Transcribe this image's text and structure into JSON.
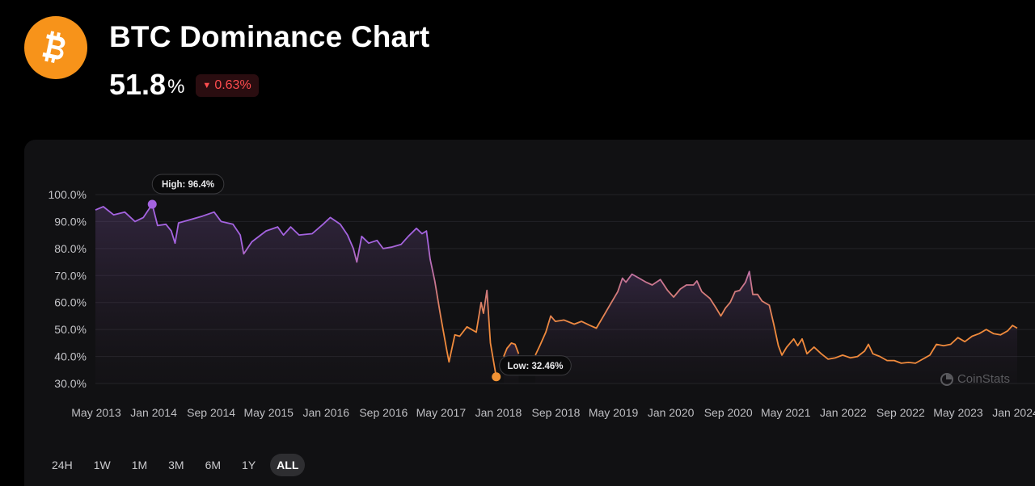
{
  "header": {
    "title": "BTC Dominance Chart",
    "dominance_value": "51.8",
    "dominance_unit": "%",
    "change": "0.63%",
    "change_direction": "down",
    "logo_icon": "bitcoin-icon",
    "brand_color": "#f7931a",
    "negative_color": "#ff4d4f"
  },
  "range_tabs": [
    {
      "label": "24H",
      "active": false
    },
    {
      "label": "1W",
      "active": false
    },
    {
      "label": "1M",
      "active": false
    },
    {
      "label": "3M",
      "active": false
    },
    {
      "label": "6M",
      "active": false
    },
    {
      "label": "1Y",
      "active": false
    },
    {
      "label": "ALL",
      "active": true
    }
  ],
  "watermark": "CoinStats",
  "chart_data": {
    "type": "line",
    "title": "",
    "xlabel": "",
    "ylabel": "",
    "ylim": [
      30,
      100
    ],
    "yticks": [
      "30.0%",
      "40.0%",
      "50.0%",
      "60.0%",
      "70.0%",
      "80.0%",
      "90.0%",
      "100.0%"
    ],
    "xticks": [
      "May 2013",
      "Jan 2014",
      "Sep 2014",
      "May 2015",
      "Jan 2016",
      "Sep 2016",
      "May 2017",
      "Jan 2018",
      "Sep 2018",
      "May 2019",
      "Jan 2020",
      "Sep 2020",
      "May 2021",
      "Jan 2022",
      "Sep 2022",
      "May 2023",
      "Jan 2024"
    ],
    "grid": true,
    "gradient_colors": [
      "#a463e0",
      "#f08a3c"
    ],
    "annotations": {
      "high": {
        "label": "High: 96.4%",
        "date": "2013-12-28",
        "value": 96.4,
        "color": "#a463e0"
      },
      "low": {
        "label": "Low: 32.46%",
        "date": "2018-01-14",
        "value": 32.46,
        "color": "#f09234"
      }
    },
    "series": [
      {
        "points": [
          [
            "2013-04-28",
            94.3
          ],
          [
            "2013-06-01",
            95.5
          ],
          [
            "2013-07-15",
            92.5
          ],
          [
            "2013-09-01",
            93.5
          ],
          [
            "2013-10-15",
            90.0
          ],
          [
            "2013-11-20",
            91.5
          ],
          [
            "2013-12-28",
            96.4
          ],
          [
            "2014-01-20",
            88.5
          ],
          [
            "2014-02-25",
            89.0
          ],
          [
            "2014-03-20",
            86.5
          ],
          [
            "2014-04-05",
            82.0
          ],
          [
            "2014-04-20",
            89.5
          ],
          [
            "2014-06-01",
            90.5
          ],
          [
            "2014-08-01",
            92.0
          ],
          [
            "2014-09-20",
            93.5
          ],
          [
            "2014-10-20",
            90.0
          ],
          [
            "2014-12-10",
            89.0
          ],
          [
            "2015-01-10",
            85.0
          ],
          [
            "2015-01-25",
            78.0
          ],
          [
            "2015-03-01",
            82.5
          ],
          [
            "2015-05-01",
            86.5
          ],
          [
            "2015-06-20",
            88.0
          ],
          [
            "2015-07-15",
            85.0
          ],
          [
            "2015-08-15",
            88.0
          ],
          [
            "2015-09-20",
            85.0
          ],
          [
            "2015-11-15",
            85.5
          ],
          [
            "2016-01-01",
            89.0
          ],
          [
            "2016-02-01",
            91.5
          ],
          [
            "2016-03-15",
            89.0
          ],
          [
            "2016-04-15",
            85.0
          ],
          [
            "2016-05-10",
            80.0
          ],
          [
            "2016-05-25",
            75.0
          ],
          [
            "2016-06-15",
            84.5
          ],
          [
            "2016-07-15",
            82.0
          ],
          [
            "2016-08-20",
            83.0
          ],
          [
            "2016-09-15",
            80.0
          ],
          [
            "2016-10-20",
            80.5
          ],
          [
            "2016-12-01",
            81.5
          ],
          [
            "2017-01-01",
            84.5
          ],
          [
            "2017-02-05",
            87.5
          ],
          [
            "2017-03-01",
            85.5
          ],
          [
            "2017-03-20",
            86.5
          ],
          [
            "2017-04-05",
            76.0
          ],
          [
            "2017-04-25",
            68.0
          ],
          [
            "2017-05-20",
            55.0
          ],
          [
            "2017-06-15",
            42.5
          ],
          [
            "2017-06-25",
            38.0
          ],
          [
            "2017-07-20",
            48.0
          ],
          [
            "2017-08-10",
            47.5
          ],
          [
            "2017-09-10",
            51.0
          ],
          [
            "2017-10-20",
            49.0
          ],
          [
            "2017-11-10",
            60.0
          ],
          [
            "2017-11-20",
            56.0
          ],
          [
            "2017-12-05",
            64.5
          ],
          [
            "2017-12-20",
            45.0
          ],
          [
            "2018-01-14",
            32.46
          ]
        ]
      },
      {
        "points": [
          [
            "2018-02-15",
            40.0
          ],
          [
            "2018-03-01",
            43.0
          ],
          [
            "2018-03-20",
            45.0
          ],
          [
            "2018-04-05",
            44.5
          ],
          [
            "2018-04-20",
            41.0
          ]
        ]
      },
      {
        "points": [
          [
            "2018-07-01",
            40.5
          ],
          [
            "2018-07-20",
            44.0
          ],
          [
            "2018-08-15",
            49.0
          ],
          [
            "2018-09-05",
            55.0
          ],
          [
            "2018-09-25",
            53.0
          ],
          [
            "2018-11-01",
            53.5
          ],
          [
            "2018-12-15",
            52.0
          ],
          [
            "2019-01-15",
            53.0
          ],
          [
            "2019-02-20",
            51.5
          ],
          [
            "2019-03-20",
            50.5
          ],
          [
            "2019-04-20",
            55.0
          ],
          [
            "2019-05-20",
            59.5
          ],
          [
            "2019-06-20",
            64.0
          ],
          [
            "2019-07-10",
            69.0
          ],
          [
            "2019-07-25",
            67.5
          ],
          [
            "2019-08-20",
            70.5
          ],
          [
            "2019-09-20",
            69.0
          ],
          [
            "2019-10-20",
            67.5
          ],
          [
            "2019-11-15",
            66.5
          ],
          [
            "2019-12-20",
            68.5
          ],
          [
            "2020-01-20",
            64.5
          ],
          [
            "2020-02-15",
            62.0
          ],
          [
            "2020-03-15",
            65.0
          ],
          [
            "2020-04-10",
            66.5
          ],
          [
            "2020-05-10",
            66.5
          ],
          [
            "2020-05-25",
            68.0
          ],
          [
            "2020-06-15",
            64.0
          ],
          [
            "2020-07-20",
            61.5
          ],
          [
            "2020-08-15",
            58.0
          ],
          [
            "2020-09-05",
            55.0
          ],
          [
            "2020-09-25",
            58.0
          ],
          [
            "2020-10-15",
            60.0
          ],
          [
            "2020-11-05",
            64.0
          ],
          [
            "2020-11-25",
            64.5
          ],
          [
            "2020-12-20",
            67.5
          ],
          [
            "2021-01-05",
            71.5
          ],
          [
            "2021-01-20",
            63.0
          ],
          [
            "2021-02-10",
            63.0
          ],
          [
            "2021-03-01",
            60.5
          ],
          [
            "2021-04-01",
            59.0
          ],
          [
            "2021-04-20",
            52.0
          ],
          [
            "2021-05-10",
            44.0
          ],
          [
            "2021-05-25",
            40.5
          ],
          [
            "2021-06-15",
            43.5
          ],
          [
            "2021-07-15",
            46.5
          ],
          [
            "2021-08-01",
            44.0
          ],
          [
            "2021-08-20",
            46.5
          ],
          [
            "2021-09-10",
            41.0
          ],
          [
            "2021-10-10",
            43.5
          ],
          [
            "2021-11-10",
            41.0
          ],
          [
            "2021-12-10",
            39.0
          ],
          [
            "2022-01-10",
            39.5
          ],
          [
            "2022-02-10",
            40.5
          ],
          [
            "2022-03-15",
            39.5
          ],
          [
            "2022-04-15",
            40.0
          ],
          [
            "2022-05-15",
            42.0
          ],
          [
            "2022-06-01",
            44.5
          ],
          [
            "2022-06-20",
            41.0
          ],
          [
            "2022-07-20",
            40.0
          ],
          [
            "2022-08-20",
            38.5
          ],
          [
            "2022-09-20",
            38.5
          ],
          [
            "2022-10-20",
            37.5
          ],
          [
            "2022-11-20",
            37.8
          ],
          [
            "2022-12-20",
            37.5
          ],
          [
            "2023-01-20",
            39.0
          ],
          [
            "2023-02-20",
            40.5
          ],
          [
            "2023-03-20",
            44.5
          ],
          [
            "2023-04-20",
            44.0
          ],
          [
            "2023-05-20",
            44.5
          ],
          [
            "2023-06-20",
            47.0
          ],
          [
            "2023-07-20",
            45.5
          ],
          [
            "2023-08-20",
            47.5
          ],
          [
            "2023-09-20",
            48.5
          ],
          [
            "2023-10-20",
            50.0
          ],
          [
            "2023-11-20",
            48.5
          ],
          [
            "2023-12-20",
            48.0
          ],
          [
            "2024-01-20",
            49.5
          ],
          [
            "2024-02-10",
            51.5
          ],
          [
            "2024-03-01",
            50.5
          ]
        ]
      }
    ]
  }
}
